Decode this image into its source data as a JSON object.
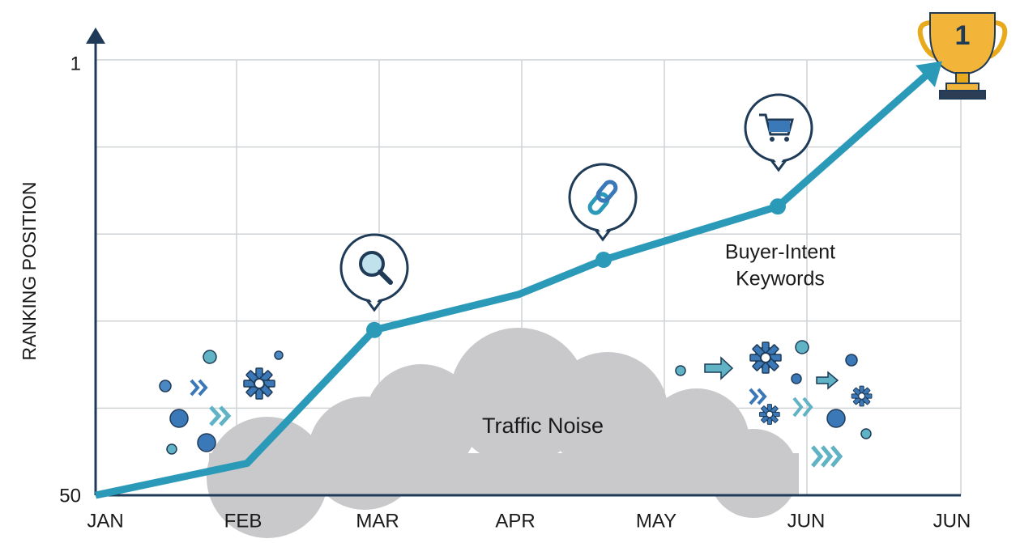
{
  "chart_data": {
    "type": "line",
    "y_label": "RANKING POSITION",
    "categories": [
      "JAN",
      "FEB",
      "MAR",
      "APR",
      "MAY",
      "JUN",
      "JUN"
    ],
    "series": [
      {
        "name": null,
        "color": "#2b9ab8",
        "values": [
          50,
          46.4,
          31.4,
          27.4,
          23.5,
          17.5,
          2.6
        ]
      }
    ],
    "ylim": [
      50,
      1
    ],
    "yticks": [
      1,
      {
        "value": 10.8,
        "label": null
      },
      {
        "value": 20.6,
        "label": null
      },
      {
        "value": 30.4,
        "label": null
      },
      {
        "value": 40.2,
        "label": null
      },
      50
    ],
    "grid": true,
    "annotations": {
      "noise": "Traffic Noise",
      "keywords": [
        "Buyer-Intent",
        "Keywords"
      ],
      "trophy": "1"
    }
  }
}
